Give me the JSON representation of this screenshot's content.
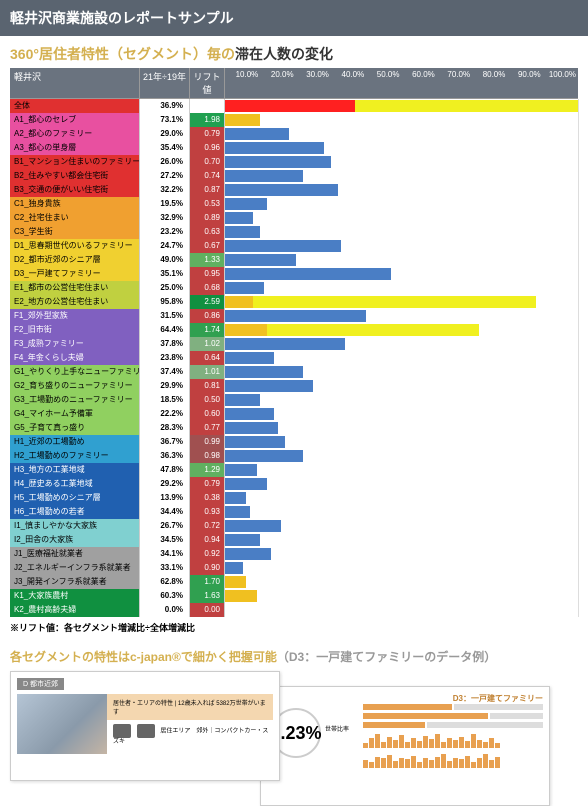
{
  "header": "軽井沢商業施設のレポートサンプル",
  "subtitle_gold": "360°居住者特性（セグメント）毎の",
  "subtitle_black": "滞在人数の変化",
  "table": {
    "location_label": "軽井沢",
    "col_pct": "21年÷19年",
    "col_lift": "リフト値",
    "ticks": [
      "10.0%",
      "20.0%",
      "30.0%",
      "40.0%",
      "50.0%",
      "60.0%",
      "70.0%",
      "80.0%",
      "90.0%",
      "100.0%"
    ],
    "redline_pct": 36.9,
    "rows": [
      {
        "label": "全体",
        "pct": "36.9%",
        "lift": "",
        "bg": "#e03030",
        "bar": 100,
        "special": "red"
      },
      {
        "label": "A1_都心のセレブ",
        "pct": "73.1%",
        "lift": "1.98",
        "bg": "#e850a0",
        "liftbg": "#20a050",
        "bar": 10,
        "sp": 1
      },
      {
        "label": "A2_都心のファミリー",
        "pct": "29.0%",
        "lift": "0.79",
        "bg": "#e850a0",
        "liftbg": "#c04040",
        "bar": 18
      },
      {
        "label": "A3_都心の単身層",
        "pct": "35.4%",
        "lift": "0.96",
        "bg": "#e850a0",
        "liftbg": "#c04040",
        "bar": 28
      },
      {
        "label": "B1_マンション住まいのファミリー",
        "pct": "26.0%",
        "lift": "0.70",
        "bg": "#e03030",
        "liftbg": "#c04040",
        "bar": 30
      },
      {
        "label": "B2_住みやすい都会住宅街",
        "pct": "27.2%",
        "lift": "0.74",
        "bg": "#e03030",
        "liftbg": "#c04040",
        "bar": 22
      },
      {
        "label": "B3_交通の便がいい住宅街",
        "pct": "32.2%",
        "lift": "0.87",
        "bg": "#e03030",
        "liftbg": "#c04040",
        "bar": 32
      },
      {
        "label": "C1_独身貴族",
        "pct": "19.5%",
        "lift": "0.53",
        "bg": "#f0a030",
        "liftbg": "#c04040",
        "bar": 12
      },
      {
        "label": "C2_社宅住まい",
        "pct": "32.9%",
        "lift": "0.89",
        "bg": "#f0a030",
        "liftbg": "#c04040",
        "bar": 8
      },
      {
        "label": "C3_学生街",
        "pct": "23.2%",
        "lift": "0.63",
        "bg": "#f0a030",
        "liftbg": "#c04040",
        "bar": 10
      },
      {
        "label": "D1_思春期世代のいるファミリー",
        "pct": "24.7%",
        "lift": "0.67",
        "bg": "#f0d030",
        "liftbg": "#c04040",
        "bar": 33
      },
      {
        "label": "D2_都市近郊のシニア層",
        "pct": "49.0%",
        "lift": "1.33",
        "bg": "#f0d030",
        "liftbg": "#60b060",
        "bar": 20
      },
      {
        "label": "D3_一戸建てファミリー",
        "pct": "35.1%",
        "lift": "0.95",
        "bg": "#f0d030",
        "liftbg": "#c04040",
        "bar": 47
      },
      {
        "label": "E1_都市の公営住宅住まい",
        "pct": "25.0%",
        "lift": "0.68",
        "bg": "#c0d040",
        "liftbg": "#c04040",
        "bar": 11
      },
      {
        "label": "E2_地方の公営住宅住まい",
        "pct": "95.8%",
        "lift": "2.59",
        "bg": "#c0d040",
        "liftbg": "#109040",
        "bar": 8,
        "sp": 1,
        "barext": 88
      },
      {
        "label": "F1_郊外型家族",
        "pct": "31.5%",
        "lift": "0.86",
        "bg": "#8060c0",
        "liftbg": "#c04040",
        "bar": 40
      },
      {
        "label": "F2_旧市街",
        "pct": "64.4%",
        "lift": "1.74",
        "bg": "#8060c0",
        "liftbg": "#30a050",
        "bar": 12,
        "sp": 1,
        "barext": 72
      },
      {
        "label": "F3_成熟ファミリー",
        "pct": "37.8%",
        "lift": "1.02",
        "bg": "#8060c0",
        "liftbg": "#80b080",
        "bar": 34
      },
      {
        "label": "F4_年金くらし夫婦",
        "pct": "23.8%",
        "lift": "0.64",
        "bg": "#8060c0",
        "liftbg": "#c04040",
        "bar": 14
      },
      {
        "label": "G1_やりくり上手なニューファミリー",
        "pct": "37.4%",
        "lift": "1.01",
        "bg": "#90d060",
        "liftbg": "#80b080",
        "bar": 22
      },
      {
        "label": "G2_育ち盛りのニューファミリー",
        "pct": "29.9%",
        "lift": "0.81",
        "bg": "#90d060",
        "liftbg": "#c04040",
        "bar": 25
      },
      {
        "label": "G3_工場勤めのニューファミリー",
        "pct": "18.5%",
        "lift": "0.50",
        "bg": "#90d060",
        "liftbg": "#c04040",
        "bar": 10
      },
      {
        "label": "G4_マイホーム予備軍",
        "pct": "22.2%",
        "lift": "0.60",
        "bg": "#90d060",
        "liftbg": "#c04040",
        "bar": 14
      },
      {
        "label": "G5_子育て真っ盛り",
        "pct": "28.3%",
        "lift": "0.77",
        "bg": "#90d060",
        "liftbg": "#c04040",
        "bar": 15
      },
      {
        "label": "H1_近郊の工場勤め",
        "pct": "36.7%",
        "lift": "0.99",
        "bg": "#30a0d0",
        "liftbg": "#a05050",
        "bar": 17
      },
      {
        "label": "H2_工場勤めのファミリー",
        "pct": "36.3%",
        "lift": "0.98",
        "bg": "#30a0d0",
        "liftbg": "#a05050",
        "bar": 22
      },
      {
        "label": "H3_地方の工業地域",
        "pct": "47.8%",
        "lift": "1.29",
        "bg": "#2060b0",
        "liftbg": "#60b060",
        "bar": 9
      },
      {
        "label": "H4_歴史ある工業地域",
        "pct": "29.2%",
        "lift": "0.79",
        "bg": "#2060b0",
        "liftbg": "#c04040",
        "bar": 12
      },
      {
        "label": "H5_工場勤めのシニア層",
        "pct": "13.9%",
        "lift": "0.38",
        "bg": "#2060b0",
        "liftbg": "#c04040",
        "bar": 6
      },
      {
        "label": "H6_工場勤めの若者",
        "pct": "34.4%",
        "lift": "0.93",
        "bg": "#2060b0",
        "liftbg": "#c04040",
        "bar": 7
      },
      {
        "label": "I1_慎ましやかな大家族",
        "pct": "26.7%",
        "lift": "0.72",
        "bg": "#80d0d0",
        "liftbg": "#c04040",
        "bar": 16
      },
      {
        "label": "I2_田舎の大家族",
        "pct": "34.5%",
        "lift": "0.94",
        "bg": "#80d0d0",
        "liftbg": "#c04040",
        "bar": 10
      },
      {
        "label": "J1_医療福祉就業者",
        "pct": "34.1%",
        "lift": "0.92",
        "bg": "#a0a0a0",
        "liftbg": "#c04040",
        "bar": 13
      },
      {
        "label": "J2_エネルギーインフラ系就業者",
        "pct": "33.1%",
        "lift": "0.90",
        "bg": "#a0a0a0",
        "liftbg": "#c04040",
        "bar": 5
      },
      {
        "label": "J3_開発インフラ系就業者",
        "pct": "62.8%",
        "lift": "1.70",
        "bg": "#a0a0a0",
        "liftbg": "#30a050",
        "bar": 6,
        "sp": 1
      },
      {
        "label": "K1_大家族農村",
        "pct": "60.3%",
        "lift": "1.63",
        "bg": "#109040",
        "liftbg": "#30a050",
        "bar": 9,
        "sp": 1
      },
      {
        "label": "K2_農村高齢夫婦",
        "pct": "0.0%",
        "lift": "0.00",
        "bg": "#109040",
        "liftbg": "#c04040",
        "bar": 0
      }
    ]
  },
  "note": "※リフト値：各セグメント増減比÷全体増減比",
  "sect2_a": "各セグメントの特性はc-japan®で細かく把握可能",
  "sect2_b": "（D3：一戸建てファミリーのデータ例）",
  "card1": {
    "tag": "D 都市近郊",
    "title": "居住者・エリアの特性 | 12歳未入れば 5382万世帯がいます",
    "sub": "居住エリア　郊外｜コンパクトカー・スズキ"
  },
  "card2": {
    "title": "D3：一戸建てファミリー",
    "num": "3.23%",
    "lbl": "世帯比率"
  }
}
